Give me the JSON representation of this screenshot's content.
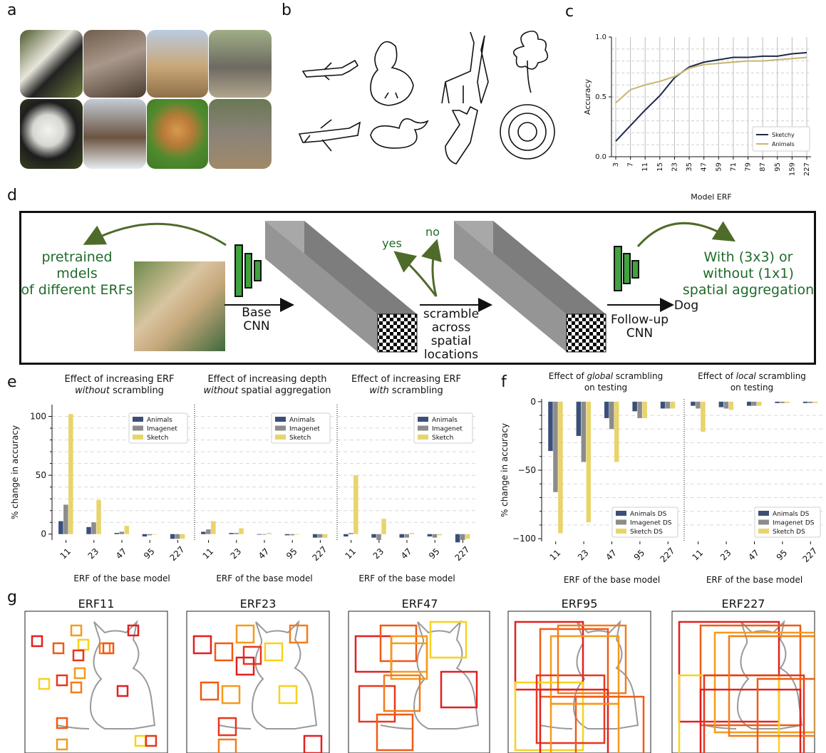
{
  "panels": {
    "a": "a",
    "b": "b",
    "c": "c",
    "d": "d",
    "e": "e",
    "f": "f",
    "g": "g"
  },
  "colors": {
    "navy": "#1b2a49",
    "olive": "#c9b56f",
    "animals_bar": "#3b4f78",
    "imagenet_bar": "#8c8c8c",
    "sketch_bar": "#e8d46c",
    "green": "#1f6b2a",
    "arrow_green": "#4f6b2a"
  },
  "diagram": {
    "pretrained_label": "pretrained mdels\nof different ERFs",
    "base_cnn": "Base\nCNN",
    "scramble": "scramble\nacross\nspatial\nlocations",
    "yes": "yes",
    "no": "no",
    "followup_cnn": "Follow-up\nCNN",
    "dog": "Dog",
    "spatial_label": "With (3x3) or\nwithout (1x1)\nspatial aggregation"
  },
  "chart_data": [
    {
      "id": "c",
      "type": "line",
      "xlabel": "Model ERF",
      "ylabel": "Accuracy",
      "categories": [
        "3",
        "7",
        "11",
        "15",
        "23",
        "35",
        "47",
        "59",
        "71",
        "79",
        "87",
        "95",
        "159",
        "227"
      ],
      "yticks": [
        "0.0",
        "0.5",
        "1.0"
      ],
      "ylim": [
        0,
        1
      ],
      "grid": true,
      "legend": "bottom-right",
      "series": [
        {
          "name": "Sketchy",
          "color": "#1b2a49",
          "values": [
            0.13,
            0.26,
            0.39,
            0.51,
            0.66,
            0.75,
            0.79,
            0.81,
            0.83,
            0.83,
            0.84,
            0.84,
            0.86,
            0.87
          ]
        },
        {
          "name": "Animals",
          "color": "#c9b56f",
          "values": [
            0.45,
            0.56,
            0.6,
            0.63,
            0.67,
            0.74,
            0.77,
            0.78,
            0.79,
            0.8,
            0.8,
            0.81,
            0.82,
            0.83
          ]
        }
      ]
    },
    {
      "id": "e1",
      "type": "bar",
      "title_lines": [
        "Effect of increasing ERF",
        "*without* scrambling"
      ],
      "xlabel": "ERF of the base model",
      "ylabel": "% change in accuracy",
      "categories": [
        "11",
        "23",
        "47",
        "95",
        "227"
      ],
      "ylim": [
        -5,
        110
      ],
      "yticks": [
        "0",
        "50",
        "100"
      ],
      "legend": "top-right",
      "series": [
        {
          "name": "Animals",
          "values": [
            11,
            6,
            1,
            -2,
            -4
          ]
        },
        {
          "name": "Imagenet",
          "values": [
            25,
            10,
            2,
            -1,
            -4
          ]
        },
        {
          "name": "Sketch",
          "values": [
            102,
            29,
            7,
            0,
            -4
          ]
        }
      ]
    },
    {
      "id": "e2",
      "type": "bar",
      "title_lines": [
        "Effect of increasing depth",
        "*without* spatial aggregation"
      ],
      "xlabel": "ERF of the base model",
      "ylabel": "",
      "categories": [
        "11",
        "23",
        "47",
        "95",
        "227"
      ],
      "ylim": [
        -5,
        110
      ],
      "legend": "top-right",
      "series": [
        {
          "name": "Animals",
          "values": [
            2,
            1,
            0,
            -1,
            -3
          ]
        },
        {
          "name": "Imagenet",
          "values": [
            4,
            1,
            0,
            -1,
            -3
          ]
        },
        {
          "name": "Sketch",
          "values": [
            11,
            5,
            1,
            0,
            -3
          ]
        }
      ]
    },
    {
      "id": "e3",
      "type": "bar",
      "title_lines": [
        "Effect of increasing ERF",
        "*with* scrambling"
      ],
      "xlabel": "ERF of the base model",
      "ylabel": "",
      "categories": [
        "11",
        "23",
        "47",
        "95",
        "227"
      ],
      "ylim": [
        -5,
        110
      ],
      "legend": "top-right",
      "series": [
        {
          "name": "Animals",
          "values": [
            -2,
            -3,
            -3,
            -2,
            -7
          ]
        },
        {
          "name": "Imagenet",
          "values": [
            1,
            -5,
            -3,
            -3,
            -5
          ]
        },
        {
          "name": "Sketch",
          "values": [
            50,
            13,
            1,
            -1,
            -4
          ]
        }
      ]
    },
    {
      "id": "f1",
      "type": "bar",
      "title_lines": [
        "Effect of *global* scrambling",
        "on testing"
      ],
      "xlabel": "ERF of the base model",
      "ylabel": "% change in accuracy",
      "categories": [
        "11",
        "23",
        "47",
        "95",
        "227"
      ],
      "ylim": [
        -102,
        2
      ],
      "yticks": [
        "0",
        "−50",
        "−100"
      ],
      "legend": "bottom-right",
      "series": [
        {
          "name": "Animals DS",
          "values": [
            -36,
            -25,
            -12,
            -7,
            -5
          ]
        },
        {
          "name": "Imagenet DS",
          "values": [
            -66,
            -44,
            -20,
            -12,
            -5
          ]
        },
        {
          "name": "Sketch DS",
          "values": [
            -96,
            -88,
            -44,
            -12,
            -5
          ]
        }
      ]
    },
    {
      "id": "f2",
      "type": "bar",
      "title_lines": [
        "Effect of *local* scrambling",
        "on testing"
      ],
      "xlabel": "ERF of the base model",
      "ylabel": "",
      "categories": [
        "11",
        "23",
        "47",
        "95",
        "227"
      ],
      "ylim": [
        -102,
        2
      ],
      "legend": "bottom-right",
      "series": [
        {
          "name": "Animals DS",
          "values": [
            -3,
            -4,
            -3,
            -1,
            -1
          ]
        },
        {
          "name": "Imagenet DS",
          "values": [
            -5,
            -5,
            -3,
            -1,
            -1
          ]
        },
        {
          "name": "Sketch DS",
          "values": [
            -22,
            -6,
            -3,
            -1,
            -1
          ]
        }
      ]
    }
  ],
  "cats": [
    {
      "title": "ERF11"
    },
    {
      "title": "ERF23"
    },
    {
      "title": "ERF47"
    },
    {
      "title": "ERF95"
    },
    {
      "title": "ERF227"
    }
  ]
}
